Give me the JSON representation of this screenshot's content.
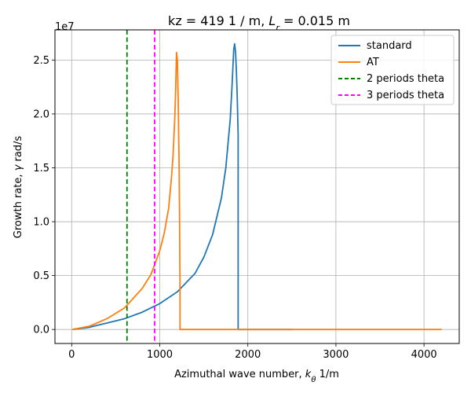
{
  "chart_data": {
    "type": "line",
    "title_main": "kz =  419 1 / m, ",
    "title_lr_symbol": "L",
    "title_lr_sub": "r",
    "title_lr_value": " = 0.015 m",
    "xlabel_text": "Azimuthal wave number, ",
    "xlabel_symbol": "k",
    "xlabel_sub": "θ",
    "xlabel_unit": " 1/m",
    "ylabel_text": "Growth rate, ",
    "ylabel_symbol": "γ",
    "ylabel_unit": " rad/s",
    "y_offset_label": "1e7",
    "xlim": [
      -190,
      4400
    ],
    "ylim": [
      -1300000,
      27800000
    ],
    "xticks": [
      0,
      1000,
      2000,
      3000,
      4000
    ],
    "xtick_labels": [
      "0",
      "1000",
      "2000",
      "3000",
      "4000"
    ],
    "yticks": [
      0,
      5000000,
      10000000,
      15000000,
      20000000,
      25000000
    ],
    "ytick_labels": [
      "0.0",
      "0.5",
      "1.0",
      "1.5",
      "2.0",
      "2.5"
    ],
    "grid": true,
    "legend_position": "top-right",
    "colors": {
      "standard": "#1f77b4",
      "AT": "#ff7f0e",
      "two_periods": "#008000",
      "three_periods": "#ff00ff",
      "grid": "#b0b0b0"
    },
    "series": [
      {
        "name": "standard",
        "x": [
          10,
          200,
          400,
          600,
          800,
          1000,
          1200,
          1400,
          1500,
          1600,
          1700,
          1750,
          1800,
          1820,
          1840,
          1850,
          1860,
          1870,
          1880,
          1890,
          1890,
          2000,
          2500
        ],
        "y": [
          0,
          200000,
          600000,
          1000000,
          1600000,
          2400000,
          3500000,
          5200000,
          6700000,
          8800000,
          12200000,
          15000000,
          19500000,
          22500000,
          26000000,
          26500000,
          25800000,
          24000000,
          21500000,
          18000000,
          0,
          0,
          0
        ]
      },
      {
        "name": "AT",
        "x": [
          10,
          200,
          400,
          600,
          700,
          800,
          900,
          1000,
          1050,
          1100,
          1130,
          1150,
          1170,
          1180,
          1190,
          1200,
          1210,
          1220,
          1225,
          1230,
          1230,
          2000,
          3000,
          4200
        ],
        "y": [
          0,
          300000,
          1000000,
          2000000,
          2900000,
          3800000,
          5100000,
          7300000,
          8900000,
          11200000,
          13800000,
          16000000,
          19500000,
          22000000,
          25700000,
          25000000,
          21000000,
          15000000,
          10000000,
          4000000,
          0,
          0,
          0,
          0
        ]
      },
      {
        "name": "2 periods theta",
        "vline_x": 628
      },
      {
        "name": "3 periods theta",
        "vline_x": 942
      }
    ]
  }
}
